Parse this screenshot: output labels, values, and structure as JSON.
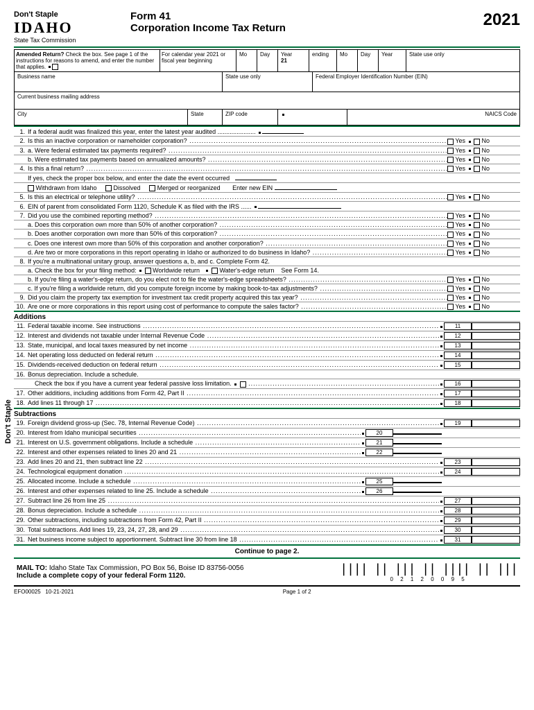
{
  "header": {
    "dont_staple": "Don't Staple",
    "brand": "IDAHO",
    "agency": "State Tax Commission",
    "form_no": "Form 41",
    "form_name": "Corporation Income Tax Return",
    "year": "2021",
    "state_use": "State use only"
  },
  "amend": {
    "label": "Amended Return?",
    "text": "Check the box. See page 1 of the instructions for reasons to amend, and enter the number that applies.",
    "cal1": "For calendar year 2021 or fiscal year beginning",
    "mo": "Mo",
    "day": "Day",
    "yr": "Year",
    "yr_prefix": "21",
    "ending": "ending"
  },
  "fields": {
    "bizname": "Business name",
    "state_use": "State use only",
    "fein": "Federal Employer Identification Number (EIN)",
    "addr": "Current business mailing address",
    "city": "City",
    "state": "State",
    "zip": "ZIP code",
    "naics": "NAICS Code"
  },
  "yes": "Yes",
  "no": "No",
  "q": {
    "l1": "If a federal audit was finalized this year, enter the latest year audited",
    "l2": "Is this an inactive corporation or nameholder corporation?",
    "l3a": "a.  Were federal estimated tax payments required?",
    "l3b": "b.  Were estimated tax payments based on annualized amounts?",
    "l4": "Is this a final return?",
    "l4_sub": "If yes, check the proper box below, and enter the date the event occurred",
    "w1": "Withdrawn from Idaho",
    "w2": "Dissolved",
    "w3": "Merged or reorganized",
    "w4": "Enter new EIN",
    "l5": "Is this an electrical or telephone utility?",
    "l6": "EIN of parent from consolidated Form 1120, Schedule K as filed with the IRS",
    "l7": "Did you use the combined reporting method?",
    "l7a": "a.  Does this corporation own more than 50% of another corporation?",
    "l7b": "b.  Does another corporation own more than 50% of this corporation?",
    "l7c": "c.  Does one interest own more than 50% of this corporation and another corporation?",
    "l7d": "d.  Are two or more corporations in this report operating in Idaho or authorized to do business in Idaho?",
    "l8": "If you're a multinational unitary group, answer questions a, b, and c. Complete Form 42.",
    "l8a": "a.  Check the box for your filing method:",
    "l8a_w": "Worldwide return",
    "l8a_e": "Water's-edge return",
    "l8a_s": "See Form 14.",
    "l8b": "b.  If you're filing a water's-edge return, do you elect not to file the water's-edge spreadsheets?",
    "l8c": "c.  If you're filing a worldwide return, did you compute foreign income by making book-to-tax adjustments?",
    "l9": "Did you claim the property tax exemption for investment tax credit property acquired this tax year?",
    "l10": "Are one or more corporations in this report using cost of performance to compute the sales factor?"
  },
  "add_hdr": "Additions",
  "add": {
    "l11": "Federal taxable income. See instructions",
    "l12": "Interest and dividends not taxable under Internal Revenue Code",
    "l13": "State, municipal, and local taxes measured by net income",
    "l14": "Net operating loss deducted on federal return",
    "l15": "Dividends-received deduction on federal return",
    "l16": "Bonus depreciation. Include a schedule.",
    "l16_sub": "Check the box if you have a current year federal passive loss limitation.",
    "l17": "Other additions, including additions from Form 42, Part II",
    "l18": "Add lines 11 through 17"
  },
  "sub_hdr": "Subtractions",
  "sub": {
    "l19": "Foreign dividend gross-up (Sec. 78, Internal Revenue Code)",
    "l20": "Interest from Idaho municipal securities",
    "l21": "Interest on U.S. government obligations. Include a schedule",
    "l22": "Interest and other expenses related to lines 20 and 21",
    "l23": "Add lines 20 and 21, then subtract line 22",
    "l24": "Technological equipment donation",
    "l25": "Allocated income. Include a schedule",
    "l26": "Interest and other expenses related to line 25. Include a schedule",
    "l27": "Subtract line 26 from line 25",
    "l28": "Bonus depreciation. Include a schedule",
    "l29": "Other subtractions, including subtractions from Form 42, Part II",
    "l30": "Total subtractions. Add lines 19, 23, 24, 27, 28, and 29",
    "l31": "Net business income subject to apportionment. Subtract line 30 from line 18"
  },
  "cont": "Continue to page 2.",
  "mail": {
    "to": "MAIL TO:",
    "addr": "Idaho State Tax Commission, PO Box 56, Boise ID 83756-0056",
    "incl": "Include a complete copy of your federal Form 1120."
  },
  "footer": {
    "code": "EFO00025",
    "date": "10-21-2021",
    "page": "Page 1 of 2"
  },
  "barcode_digits": "0 2 1 2 0 0 9 5",
  "side_label": "Don't Staple",
  "colors": {
    "green": "#00703c"
  }
}
